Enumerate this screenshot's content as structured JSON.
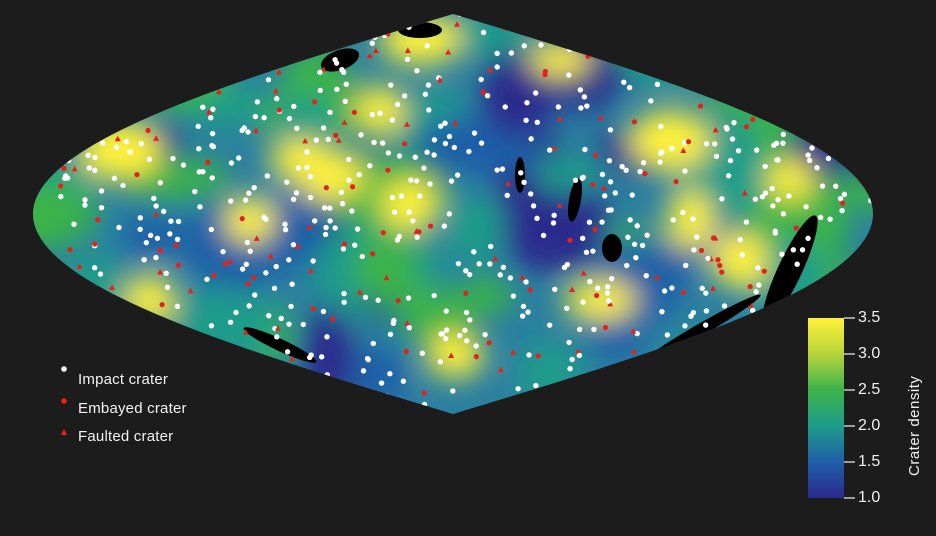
{
  "legend": {
    "items": [
      {
        "label": "Impact crater",
        "symbol": "dot",
        "color": "#ffffff"
      },
      {
        "label": "Embayed crater",
        "symbol": "dot",
        "color": "#e8201c"
      },
      {
        "label": "Faulted crater",
        "symbol": "triangle",
        "color": "#e8201c"
      }
    ]
  },
  "colorbar": {
    "title": "Crater density",
    "min": 1.0,
    "max": 3.5,
    "ticks": [
      "3.5",
      "3.0",
      "2.5",
      "2.0",
      "1.5",
      "1.0"
    ],
    "colors": [
      "#2b2a8c",
      "#1f5fa8",
      "#1f9c8a",
      "#3bb34a",
      "#b7d43a",
      "#fff23a"
    ]
  },
  "map": {
    "projection": "sinusoidal",
    "background_color": "#1c1c1c",
    "gap_color": "#000000"
  }
}
